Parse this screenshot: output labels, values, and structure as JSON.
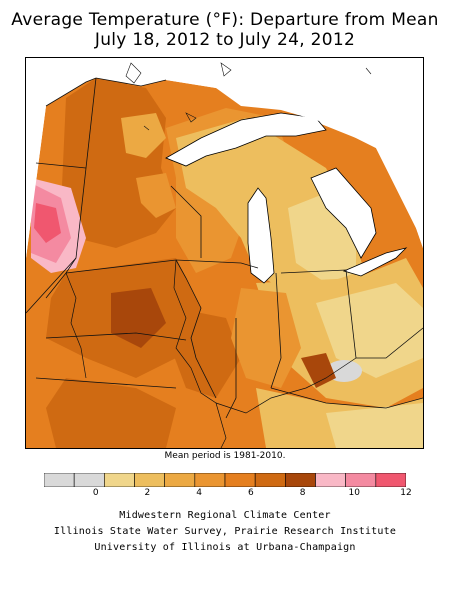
{
  "title": {
    "line1": "Average Temperature (°F): Departure from Mean",
    "line2": "July 18, 2012 to July 24, 2012"
  },
  "note": "Mean period is 1981-2010.",
  "legend": {
    "colors": [
      "#d9d9d9",
      "#d9d9d9",
      "#f0d68b",
      "#edbe5e",
      "#eca943",
      "#ea9531",
      "#e57f1f",
      "#cf6a12",
      "#a8470b",
      "#f9b8c6",
      "#f48aa1",
      "#f0576f"
    ],
    "ticks": [
      "0",
      "2",
      "4",
      "6",
      "8",
      "10",
      "12"
    ],
    "tick_values": [
      0,
      2,
      4,
      6,
      8,
      10,
      12
    ],
    "range": [
      -2,
      12
    ]
  },
  "credits": [
    "Midwestern Regional Climate Center",
    "Illinois State Water Survey, Prairie Research Institute",
    "University of Illinois at Urbana-Champaign"
  ],
  "map": {
    "water_color": "#ffffff",
    "colors": {
      "light": "#f0d68b",
      "tan": "#edbe5e",
      "mid": "#eca943",
      "orange": "#ea9531",
      "deep": "#e57f1f",
      "darker": "#cf6a12",
      "darkest": "#a8470b",
      "gray": "#d9d9d9",
      "pink_light": "#f9b8c6",
      "pink_mid": "#f48aa1",
      "pink_hot": "#f0576f"
    }
  }
}
